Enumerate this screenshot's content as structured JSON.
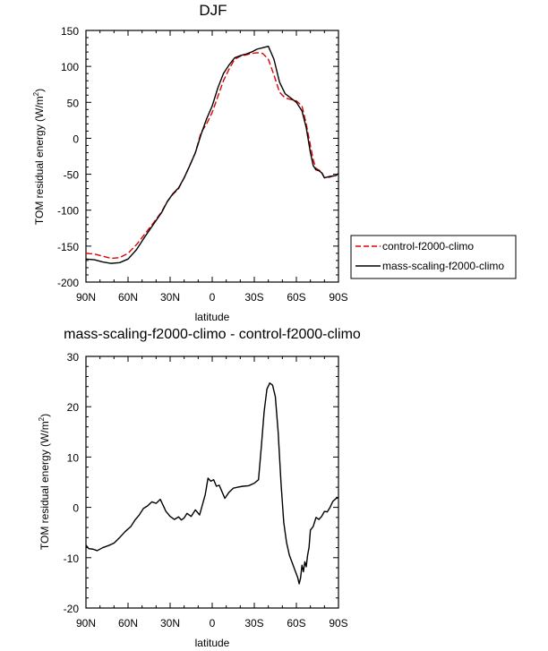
{
  "chart_data": [
    {
      "type": "line",
      "title": "DJF",
      "xlabel": "latitude",
      "ylabel": "TOM residual energy (W/m",
      "ylabel_sup": "2",
      "ylabel_close": ")",
      "xlim": [
        90,
        -90
      ],
      "ylim": [
        -200,
        150
      ],
      "xticks": [
        90,
        60,
        30,
        0,
        -30,
        -60,
        -90
      ],
      "xtick_labels": [
        "90N",
        "60N",
        "30N",
        "0",
        "30S",
        "60S",
        "90S"
      ],
      "yticks": [
        -200,
        -150,
        -100,
        -50,
        0,
        50,
        100,
        150
      ],
      "ytick_labels": [
        "-200",
        "-150",
        "-100",
        "-50",
        "0",
        "50",
        "100",
        "150"
      ],
      "legend": {
        "position": "right",
        "entries": [
          {
            "label": "control-f2000-climo",
            "color": "#e00000",
            "style": "dashed"
          },
          {
            "label": "mass-scaling-f2000-climo",
            "color": "#000000",
            "style": "solid"
          }
        ]
      },
      "series": [
        {
          "name": "control-f2000-climo",
          "color": "#e00000",
          "dash": true,
          "x": [
            90,
            84,
            78,
            72,
            66,
            60,
            54,
            48,
            42,
            36,
            32,
            28,
            24,
            20,
            16,
            12,
            8,
            4,
            0,
            -4,
            -8,
            -12,
            -16,
            -20,
            -24,
            -28,
            -32,
            -36,
            -40,
            -44,
            -48,
            -52,
            -56,
            -60,
            -64,
            -67,
            -70,
            -72,
            -74,
            -76,
            -78,
            -80,
            -84,
            -88,
            -90
          ],
          "y": [
            -160,
            -161,
            -164,
            -167,
            -166,
            -160,
            -148,
            -133,
            -118,
            -102,
            -88,
            -78,
            -70,
            -55,
            -38,
            -20,
            8,
            20,
            36,
            58,
            80,
            96,
            110,
            114,
            116,
            118,
            119,
            118,
            110,
            88,
            64,
            56,
            54,
            52,
            45,
            20,
            -10,
            -30,
            -42,
            -44,
            -47,
            -55,
            -54,
            -51,
            -49
          ]
        },
        {
          "name": "mass-scaling-f2000-climo",
          "color": "#000000",
          "dash": false,
          "x": [
            90,
            84,
            78,
            72,
            66,
            60,
            54,
            48,
            42,
            36,
            32,
            28,
            24,
            20,
            16,
            12,
            8,
            4,
            0,
            -4,
            -8,
            -12,
            -16,
            -20,
            -24,
            -28,
            -32,
            -36,
            -40,
            -44,
            -48,
            -52,
            -56,
            -60,
            -64,
            -67,
            -70,
            -72,
            -74,
            -76,
            -78,
            -80,
            -84,
            -88,
            -90
          ],
          "y": [
            -168,
            -169,
            -172,
            -174,
            -173,
            -168,
            -155,
            -137,
            -120,
            -103,
            -88,
            -77,
            -69,
            -55,
            -38,
            -20,
            5,
            27,
            45,
            70,
            90,
            102,
            112,
            115,
            117,
            120,
            124,
            126,
            128,
            110,
            78,
            62,
            56,
            50,
            38,
            15,
            -20,
            -38,
            -44,
            -45,
            -48,
            -55,
            -53,
            -52,
            -49
          ]
        }
      ]
    },
    {
      "type": "line",
      "title": "mass-scaling-f2000-climo - control-f2000-climo",
      "xlabel": "latitude",
      "ylabel": "TOM residual energy (W/m",
      "ylabel_sup": "2",
      "ylabel_close": ")",
      "xlim": [
        90,
        -90
      ],
      "ylim": [
        -20,
        30
      ],
      "xticks": [
        90,
        60,
        30,
        0,
        -30,
        -60,
        -90
      ],
      "xtick_labels": [
        "90N",
        "60N",
        "30N",
        "0",
        "30S",
        "60S",
        "90S"
      ],
      "yticks": [
        -20,
        -10,
        0,
        10,
        20,
        30
      ],
      "ytick_labels": [
        "-20",
        "-10",
        "0",
        "10",
        "20",
        "30"
      ],
      "series": [
        {
          "name": "mass-scaling-f2000-climo - control-f2000-climo",
          "color": "#000000",
          "dash": false,
          "x": [
            90,
            88,
            85,
            82,
            78,
            74,
            70,
            66,
            62,
            58,
            55,
            52,
            49,
            46,
            43,
            40,
            37,
            35,
            33,
            30,
            27,
            24,
            22,
            20,
            18,
            15,
            12,
            9,
            7,
            5,
            3,
            1,
            -1,
            -3,
            -5,
            -7,
            -9,
            -12,
            -15,
            -18,
            -22,
            -26,
            -30,
            -33,
            -35,
            -37,
            -39,
            -41,
            -43,
            -45,
            -47,
            -49,
            -51,
            -53,
            -55,
            -57,
            -59,
            -61,
            -62,
            -63,
            -64,
            -65,
            -66,
            -67,
            -68,
            -69,
            -70,
            -72,
            -74,
            -76,
            -78,
            -80,
            -82,
            -84,
            -86,
            -88,
            -90
          ],
          "y": [
            -7.5,
            -8.2,
            -8.3,
            -8.6,
            -8.0,
            -7.6,
            -7.1,
            -6.0,
            -4.8,
            -3.8,
            -2.5,
            -1.5,
            -0.2,
            0.3,
            1.1,
            0.8,
            1.6,
            0.4,
            -0.8,
            -1.8,
            -2.4,
            -1.9,
            -2.5,
            -2.1,
            -1.2,
            -1.8,
            -0.5,
            -1.5,
            0.5,
            2.5,
            5.8,
            5.2,
            5.5,
            4.2,
            4.4,
            3.1,
            1.8,
            3.0,
            3.8,
            4.0,
            4.2,
            4.3,
            4.8,
            5.5,
            12.0,
            19.0,
            23.5,
            24.7,
            24.3,
            22.0,
            15.0,
            5.0,
            -3.0,
            -7.0,
            -9.5,
            -11.0,
            -12.5,
            -14.0,
            -15.2,
            -14.0,
            -11.5,
            -12.8,
            -10.8,
            -11.8,
            -9.5,
            -8.0,
            -4.5,
            -3.8,
            -2.0,
            -2.4,
            -1.8,
            -0.8,
            -0.9,
            0.0,
            1.2,
            1.7,
            2.0
          ]
        }
      ]
    }
  ]
}
